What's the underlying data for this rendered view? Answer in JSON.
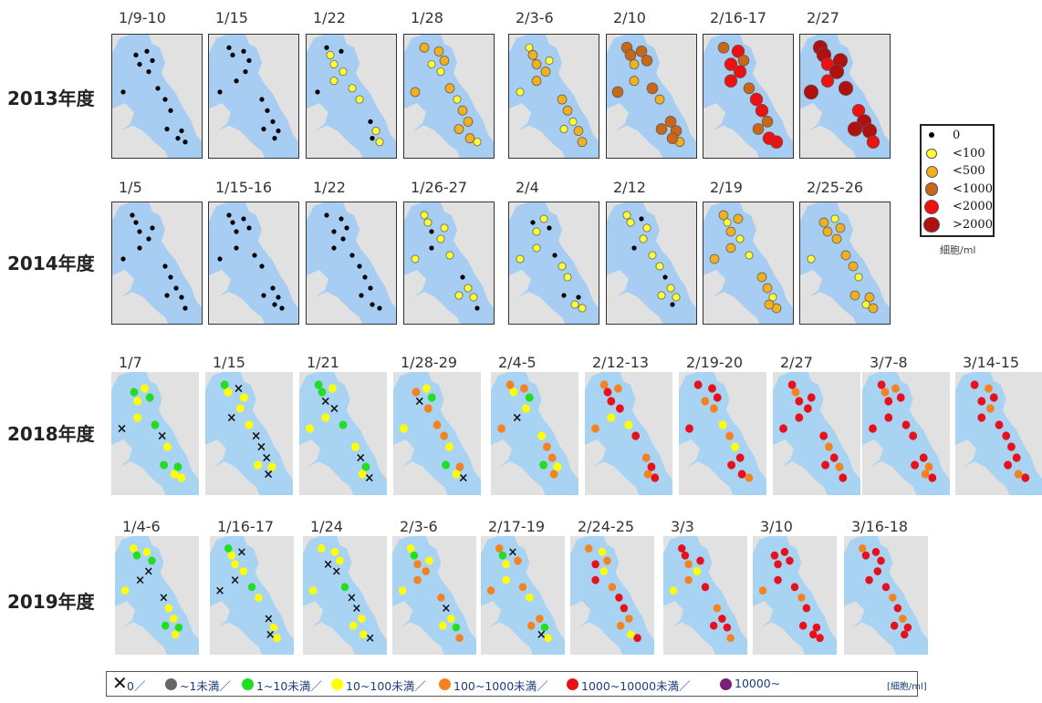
{
  "rows": [
    {
      "year": "2013年度",
      "dates": [
        "1/9-10",
        "1/15",
        "1/22",
        "1/28",
        "2/3-6",
        "2/10",
        "2/16-17",
        "2/27"
      ]
    },
    {
      "year": "2014年度",
      "dates": [
        "1/5",
        "1/15-16",
        "1/22",
        "1/26-27",
        "2/4",
        "2/12",
        "2/19",
        "2/25-26"
      ]
    },
    {
      "year": "2018年度",
      "dates": [
        "1/7",
        "1/15",
        "1/21",
        "1/28-29",
        "2/4-5",
        "2/12-13",
        "2/19-20",
        "2/27",
        "3/7-8",
        "3/14-15"
      ]
    },
    {
      "year": "2019年度",
      "dates": [
        "1/4-6",
        "1/16-17",
        "1/24",
        "2/3-6",
        "2/17-19",
        "2/24-25",
        "3/3",
        "3/10",
        "3/16-18"
      ]
    }
  ],
  "legend_old": {
    "items": [
      {
        "label": "0",
        "color": "#000000",
        "kind": "dot"
      },
      {
        "label": "<100",
        "color": "#ffff33"
      },
      {
        "label": "<500",
        "color": "#f0b020"
      },
      {
        "label": "<1000",
        "color": "#c8661a"
      },
      {
        "label": "<2000",
        "color": "#ee1111"
      },
      {
        "label": ">2000",
        "color": "#b01010"
      }
    ],
    "unit": "細胞/ml"
  },
  "legend_new": {
    "items": [
      {
        "label": "0／",
        "color": "#111111",
        "kind": "cross"
      },
      {
        "label": "~1未満／",
        "color": "#666666"
      },
      {
        "label": "1~10未満／",
        "color": "#22dd22"
      },
      {
        "label": "10~100未満／",
        "color": "#ffff00"
      },
      {
        "label": "100~1000未満／",
        "color": "#f58220"
      },
      {
        "label": "1000~10000未満／",
        "color": "#e8101a"
      },
      {
        "label": "10000~",
        "color": "#7a1f7a"
      }
    ],
    "unit": "[細胞/ml]"
  },
  "colors": {
    "water": "#a9d3f2",
    "land": "#e1e1e1",
    "sea_old": "#a7cdf2"
  },
  "chart_data": {
    "type": "scatter",
    "description_levels_old": [
      "0",
      "<100",
      "<500",
      "<1000",
      "<2000",
      ">2000"
    ],
    "description_levels_new": [
      "0",
      "~1未満",
      "1~10未満",
      "10~100未満",
      "100~1000未満",
      "1000~10000未満",
      "10000~"
    ],
    "series": [
      {
        "name": "2013年度",
        "values": [
          "1/9-10",
          "1/15",
          "1/22",
          "1/28",
          "2/3-6",
          "2/10",
          "2/16-17",
          "2/27"
        ]
      },
      {
        "name": "2014年度",
        "values": [
          "1/5",
          "1/15-16",
          "1/22",
          "1/26-27",
          "2/4",
          "2/12",
          "2/19",
          "2/25-26"
        ]
      },
      {
        "name": "2018年度",
        "values": [
          "1/7",
          "1/15",
          "1/21",
          "1/28-29",
          "2/4-5",
          "2/12-13",
          "2/19-20",
          "2/27",
          "3/7-8",
          "3/14-15"
        ]
      },
      {
        "name": "2019年度",
        "values": [
          "1/4-6",
          "1/16-17",
          "1/24",
          "2/3-6",
          "2/17-19",
          "2/24-25",
          "3/3",
          "3/10",
          "3/16-18"
        ]
      }
    ]
  }
}
